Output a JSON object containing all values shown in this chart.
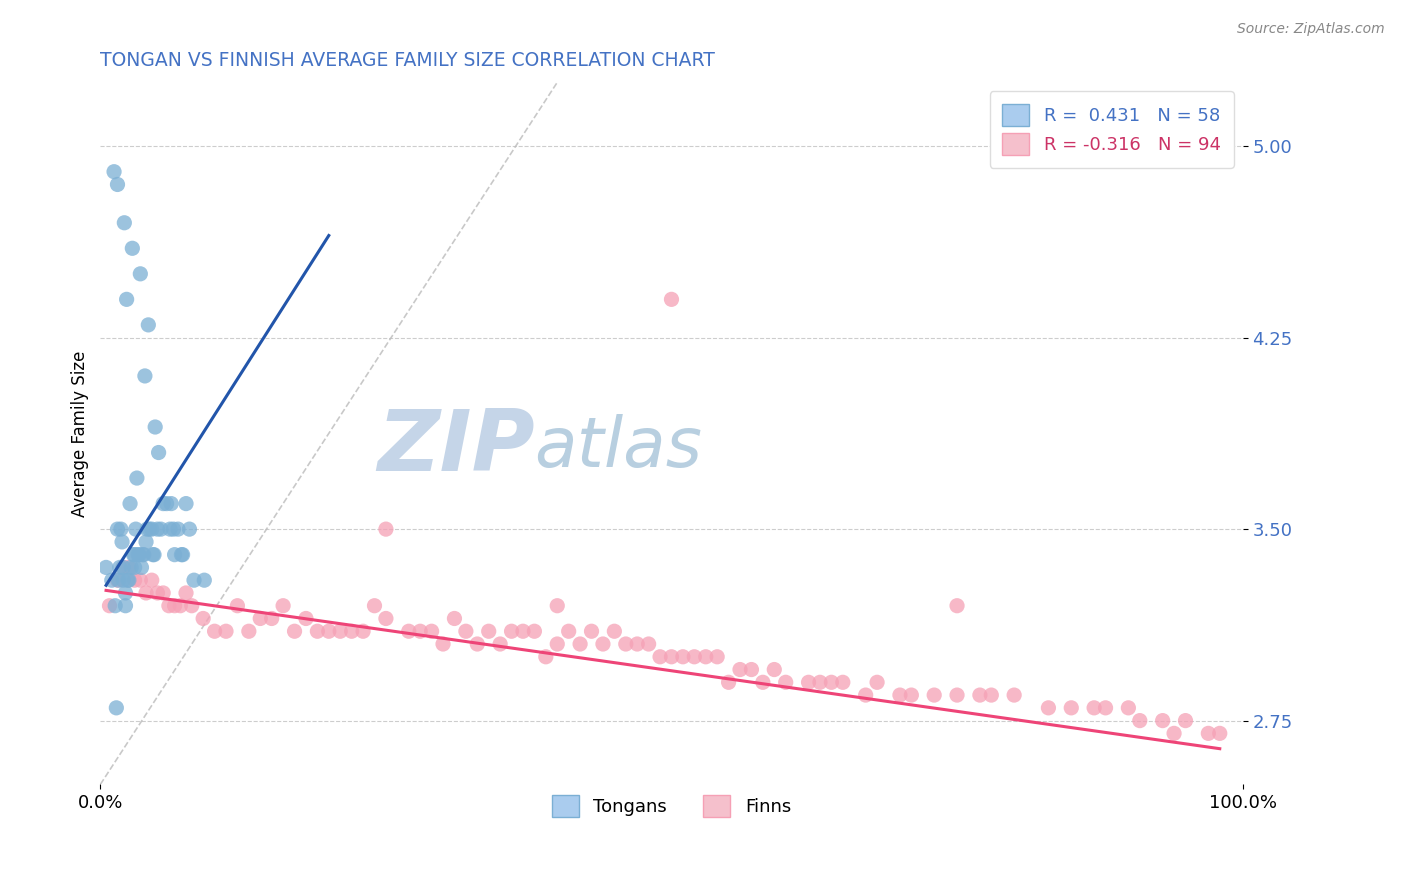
{
  "title": "TONGAN VS FINNISH AVERAGE FAMILY SIZE CORRELATION CHART",
  "source_text": "Source: ZipAtlas.com",
  "ylabel": "Average Family Size",
  "xlim": [
    0.0,
    100.0
  ],
  "ylim": [
    2.5,
    5.25
  ],
  "yticks": [
    2.75,
    3.5,
    4.25,
    5.0
  ],
  "xticks": [
    0.0,
    100.0
  ],
  "xticklabels": [
    "0.0%",
    "100.0%"
  ],
  "yticklabel_color": "#4472c4",
  "title_color": "#4472c4",
  "background_color": "#ffffff",
  "grid_color": "#c8c8c8",
  "watermark_zip": "ZIP",
  "watermark_atlas": "atlas",
  "watermark_color_zip": "#c5d5e8",
  "watermark_color_atlas": "#b8cfe0",
  "legend_line1": "R =  0.431   N = 58",
  "legend_line2": "R = -0.316   N = 94",
  "legend_color1": "#4472c4",
  "legend_color2": "#cc3366",
  "tongan_color": "#7bafd4",
  "finn_color": "#f5a0b5",
  "tongan_line_color": "#2255aa",
  "finn_line_color": "#ee4477",
  "ref_line_color": "#bbbbbb",
  "tongan_x": [
    0.5,
    1.0,
    1.2,
    1.3,
    1.5,
    1.6,
    1.7,
    1.8,
    1.9,
    2.0,
    2.1,
    2.2,
    2.3,
    2.4,
    2.5,
    2.6,
    2.7,
    2.8,
    2.9,
    3.0,
    3.1,
    3.2,
    3.3,
    3.4,
    3.5,
    3.6,
    3.7,
    3.8,
    3.9,
    4.0,
    4.1,
    4.2,
    4.3,
    4.5,
    4.7,
    4.8,
    5.0,
    5.1,
    5.5,
    5.8,
    6.1,
    6.2,
    6.4,
    6.5,
    6.8,
    7.1,
    7.2,
    7.5,
    7.8,
    8.2,
    9.1,
    2.0,
    1.5,
    3.0,
    4.6,
    2.2,
    1.4,
    5.3
  ],
  "tongan_y": [
    3.35,
    3.3,
    4.9,
    3.2,
    4.85,
    3.3,
    3.35,
    3.5,
    3.45,
    3.35,
    4.7,
    3.25,
    4.4,
    3.3,
    3.3,
    3.6,
    3.35,
    4.6,
    3.4,
    3.4,
    3.5,
    3.7,
    3.4,
    3.4,
    4.5,
    3.35,
    3.4,
    3.4,
    4.1,
    3.45,
    3.5,
    4.3,
    3.5,
    3.5,
    3.4,
    3.9,
    3.5,
    3.8,
    3.6,
    3.6,
    3.5,
    3.6,
    3.5,
    3.4,
    3.5,
    3.4,
    3.4,
    3.6,
    3.5,
    3.3,
    3.3,
    3.3,
    3.5,
    3.35,
    3.4,
    3.2,
    2.8,
    3.5
  ],
  "finn_x": [
    0.8,
    1.5,
    2.0,
    2.5,
    3.0,
    3.5,
    4.0,
    4.5,
    5.0,
    5.5,
    6.0,
    6.5,
    7.0,
    7.5,
    8.0,
    9.0,
    10.0,
    11.0,
    12.0,
    13.0,
    14.0,
    15.0,
    16.0,
    17.0,
    18.0,
    19.0,
    20.0,
    21.0,
    22.0,
    23.0,
    24.0,
    25.0,
    27.0,
    28.0,
    29.0,
    30.0,
    31.0,
    32.0,
    33.0,
    34.0,
    35.0,
    36.0,
    37.0,
    38.0,
    39.0,
    40.0,
    41.0,
    42.0,
    43.0,
    44.0,
    45.0,
    46.0,
    47.0,
    48.0,
    49.0,
    50.0,
    51.0,
    52.0,
    53.0,
    54.0,
    55.0,
    56.0,
    57.0,
    58.0,
    59.0,
    60.0,
    62.0,
    63.0,
    64.0,
    65.0,
    67.0,
    68.0,
    70.0,
    71.0,
    73.0,
    75.0,
    77.0,
    78.0,
    80.0,
    83.0,
    85.0,
    87.0,
    88.0,
    90.0,
    91.0,
    93.0,
    94.0,
    95.0,
    97.0,
    98.0,
    50.0,
    25.0,
    75.0,
    40.0
  ],
  "finn_y": [
    3.2,
    3.3,
    3.35,
    3.35,
    3.3,
    3.3,
    3.25,
    3.3,
    3.25,
    3.25,
    3.2,
    3.2,
    3.2,
    3.25,
    3.2,
    3.15,
    3.1,
    3.1,
    3.2,
    3.1,
    3.15,
    3.15,
    3.2,
    3.1,
    3.15,
    3.1,
    3.1,
    3.1,
    3.1,
    3.1,
    3.2,
    3.15,
    3.1,
    3.1,
    3.1,
    3.05,
    3.15,
    3.1,
    3.05,
    3.1,
    3.05,
    3.1,
    3.1,
    3.1,
    3.0,
    3.05,
    3.1,
    3.05,
    3.1,
    3.05,
    3.1,
    3.05,
    3.05,
    3.05,
    3.0,
    3.0,
    3.0,
    3.0,
    3.0,
    3.0,
    2.9,
    2.95,
    2.95,
    2.9,
    2.95,
    2.9,
    2.9,
    2.9,
    2.9,
    2.9,
    2.85,
    2.9,
    2.85,
    2.85,
    2.85,
    2.85,
    2.85,
    2.85,
    2.85,
    2.8,
    2.8,
    2.8,
    2.8,
    2.8,
    2.75,
    2.75,
    2.7,
    2.75,
    2.7,
    2.7,
    4.4,
    3.5,
    3.2,
    3.2
  ],
  "tongan_trend_x": [
    0.5,
    20.0
  ],
  "tongan_trend_y": [
    3.28,
    4.65
  ],
  "finn_trend_x": [
    0.5,
    98.0
  ],
  "finn_trend_y": [
    3.26,
    2.64
  ],
  "ref_line_x": [
    0.0,
    40.0
  ],
  "ref_line_y": [
    2.5,
    5.25
  ]
}
